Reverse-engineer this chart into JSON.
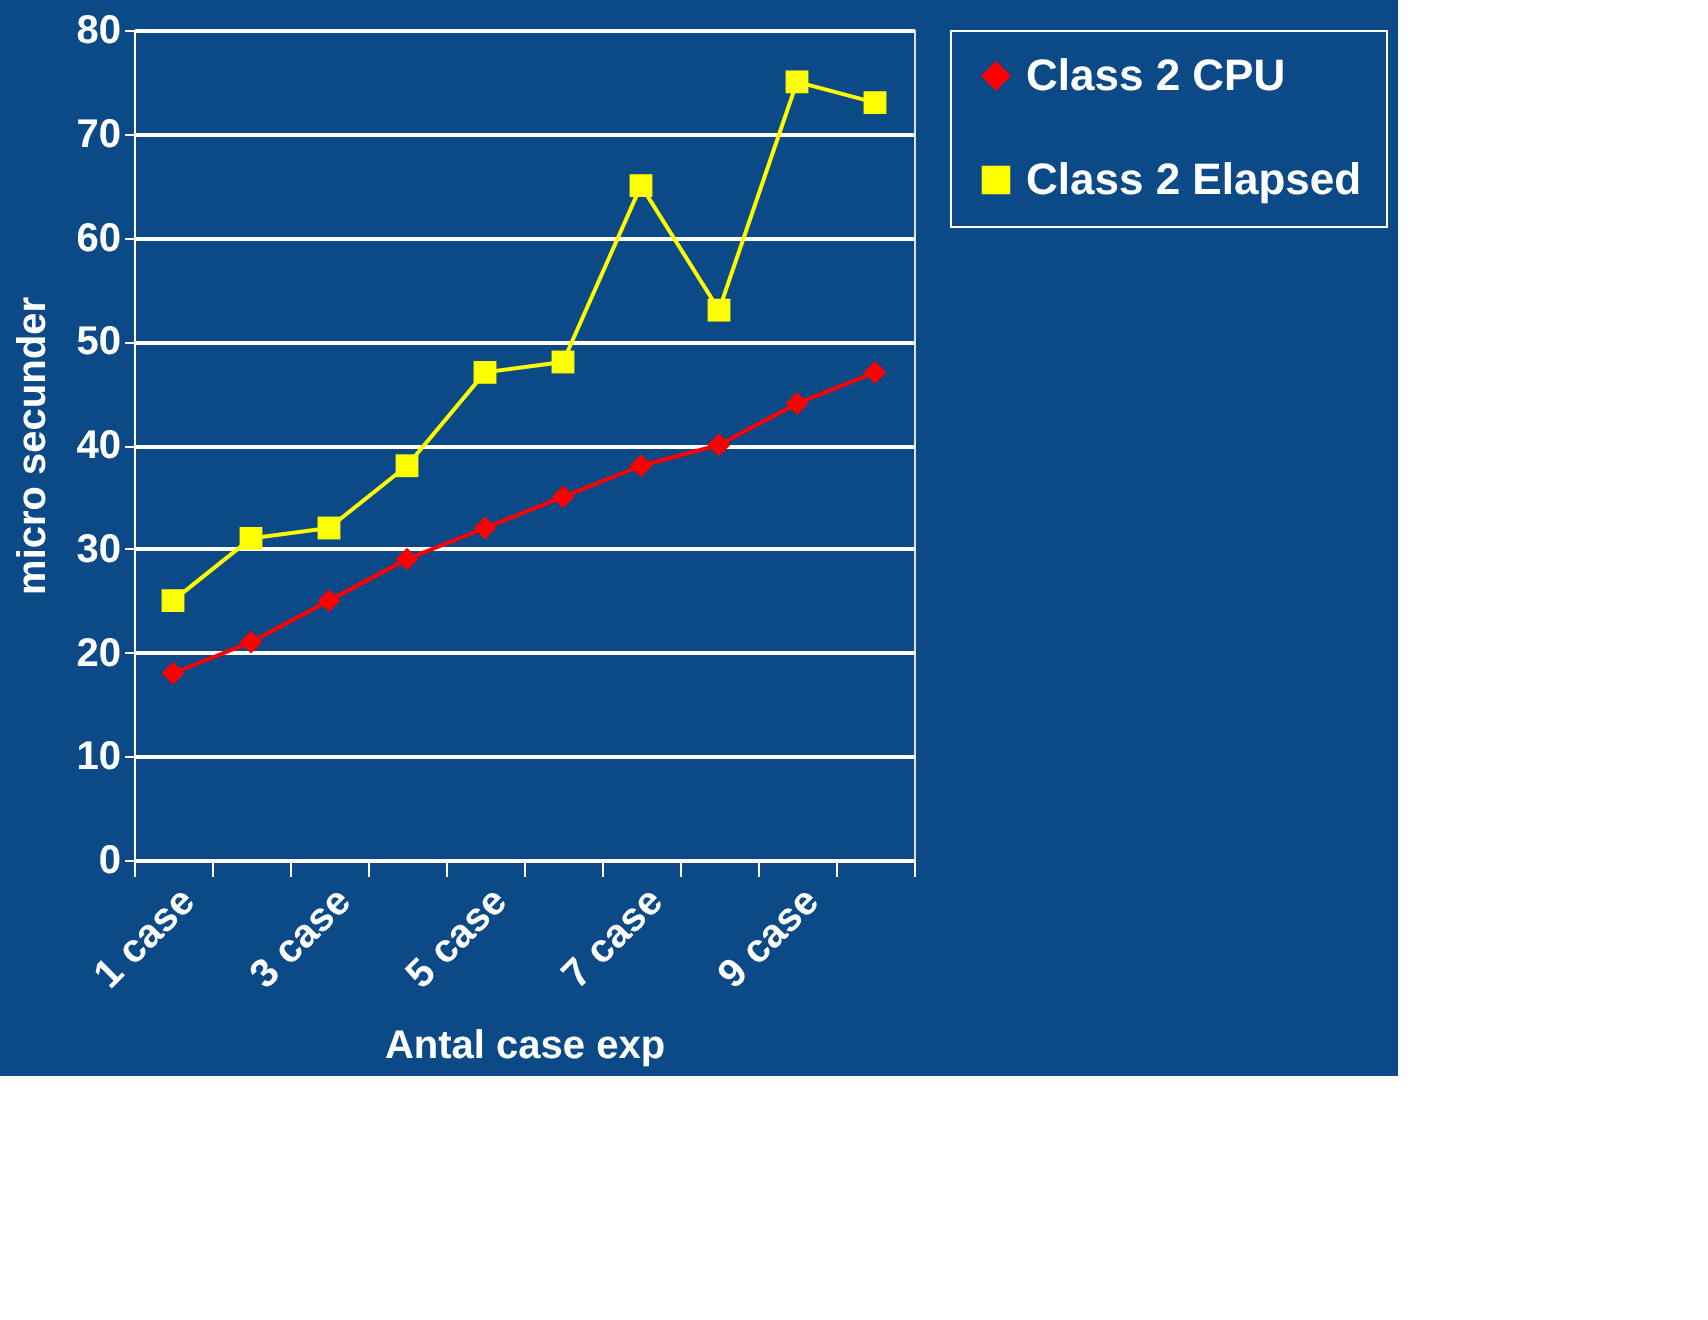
{
  "chart_data": {
    "type": "line",
    "xlabel": "Antal case exp",
    "ylabel": "micro secunder",
    "categories": [
      "1 case",
      null,
      "3 case",
      null,
      "5 case",
      null,
      "7 case",
      null,
      "9 case",
      null
    ],
    "series": [
      {
        "name": "Class 2 CPU",
        "color": "#ff0000",
        "marker": "diamond",
        "values": [
          18,
          21,
          25,
          29,
          32,
          35,
          38,
          40,
          44,
          47
        ]
      },
      {
        "name": "Class 2 Elapsed",
        "color": "#ffff00",
        "marker": "square",
        "values": [
          25,
          31,
          32,
          38,
          47,
          48,
          65,
          53,
          75,
          73
        ]
      }
    ],
    "ylim": [
      0,
      80
    ],
    "yticks": [
      0,
      10,
      20,
      30,
      40,
      50,
      60,
      70,
      80
    ],
    "grid": "y",
    "legend": "right"
  }
}
